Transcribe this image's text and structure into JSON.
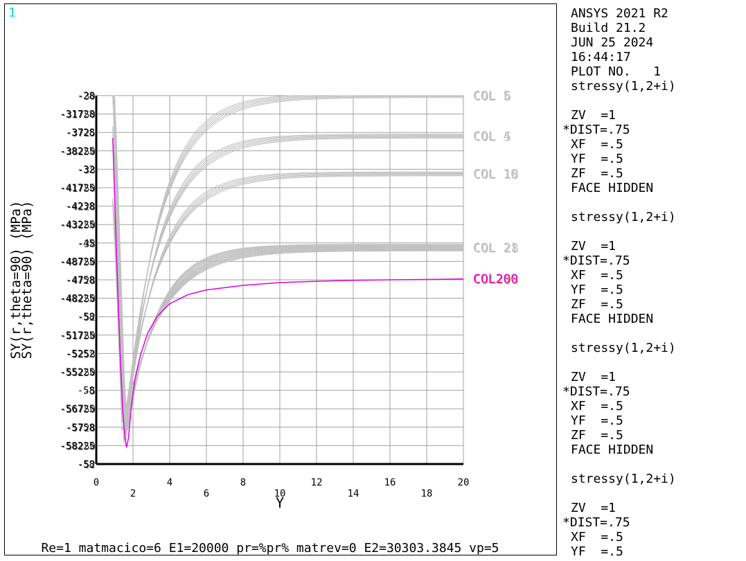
{
  "window_number": "1",
  "footer_text": "Re=1 matmacico=6 E1=20000 pr=%pr% matrev=0 E2=30303.3845 vp=5",
  "info_panel": [
    {
      "text": "ANSYS 2021 R2",
      "indent": true
    },
    {
      "text": "Build 21.2",
      "indent": true
    },
    {
      "text": "JUN 25 2024",
      "indent": true
    },
    {
      "text": "16:44:17",
      "indent": true
    },
    {
      "text": "PLOT NO.   1",
      "indent": true
    },
    {
      "text": "stressy(1,2+i)",
      "indent": true
    },
    {
      "text": "",
      "indent": true
    },
    {
      "text": "ZV  =1",
      "indent": true
    },
    {
      "text": "*DIST=.75",
      "indent": false
    },
    {
      "text": "XF  =.5",
      "indent": true
    },
    {
      "text": "YF  =.5",
      "indent": true
    },
    {
      "text": "ZF  =.5",
      "indent": true
    },
    {
      "text": "FACE HIDDEN",
      "indent": true
    },
    {
      "text": "",
      "indent": true
    },
    {
      "text": "stressy(1,2+i)",
      "indent": true
    },
    {
      "text": "",
      "indent": true
    },
    {
      "text": "ZV  =1",
      "indent": true
    },
    {
      "text": "*DIST=.75",
      "indent": false
    },
    {
      "text": "XF  =.5",
      "indent": true
    },
    {
      "text": "YF  =.5",
      "indent": true
    },
    {
      "text": "ZF  =.5",
      "indent": true
    },
    {
      "text": "FACE HIDDEN",
      "indent": true
    },
    {
      "text": "",
      "indent": true
    },
    {
      "text": "stressy(1,2+i)",
      "indent": true
    },
    {
      "text": "",
      "indent": true
    },
    {
      "text": "ZV  =1",
      "indent": true
    },
    {
      "text": "*DIST=.75",
      "indent": false
    },
    {
      "text": "XF  =.5",
      "indent": true
    },
    {
      "text": "YF  =.5",
      "indent": true
    },
    {
      "text": "ZF  =.5",
      "indent": true
    },
    {
      "text": "FACE HIDDEN",
      "indent": true
    },
    {
      "text": "",
      "indent": true
    },
    {
      "text": "stressy(1,2+i)",
      "indent": true
    },
    {
      "text": "",
      "indent": true
    },
    {
      "text": "ZV  =1",
      "indent": true
    },
    {
      "text": "*DIST=.75",
      "indent": false
    },
    {
      "text": "XF  =.5",
      "indent": true
    },
    {
      "text": "YF  =.5",
      "indent": true
    }
  ],
  "chart_data": {
    "type": "line",
    "xlabel": "Y",
    "ylabels": [
      "SY(r,theta=90) (MPa)",
      "SY(r,theta=90) (MPa)"
    ],
    "xlim": [
      0,
      20
    ],
    "ylim": [
      0,
      20
    ],
    "grid": true,
    "x_ticks": [
      {
        "value": 0,
        "label": "0",
        "row": "upper"
      },
      {
        "value": 2,
        "label": "2",
        "row": "lower"
      },
      {
        "value": 4,
        "label": "4",
        "row": "upper"
      },
      {
        "value": 6,
        "label": "6",
        "row": "lower"
      },
      {
        "value": 8,
        "label": "8",
        "row": "upper"
      },
      {
        "value": 10,
        "label": "10",
        "row": "lower"
      },
      {
        "value": 12,
        "label": "12",
        "row": "upper"
      },
      {
        "value": 14,
        "label": "14",
        "row": "lower"
      },
      {
        "value": 16,
        "label": "16",
        "row": "upper"
      },
      {
        "value": 18,
        "label": "18",
        "row": "lower"
      },
      {
        "value": 20,
        "label": "20",
        "row": "upper"
      }
    ],
    "y_tick_labels": [
      [
        "-28",
        "-30"
      ],
      [
        "-31728",
        "-31750"
      ],
      [
        "-3728",
        "-3725"
      ],
      [
        "-38225",
        "-38250"
      ],
      [
        "-32",
        "-38"
      ],
      [
        "-41725",
        "-41750"
      ],
      [
        "-4238",
        "-4228"
      ],
      [
        "-43225",
        "-43250"
      ],
      [
        "-45",
        "-38"
      ],
      [
        "-48725",
        "-48750"
      ],
      [
        "-4758",
        "-4728"
      ],
      [
        "-48225",
        "-48250"
      ],
      [
        "-58",
        "-52"
      ],
      [
        "-51725",
        "-51750"
      ],
      [
        "-5252",
        "-5258"
      ],
      [
        "-55225",
        "-55250"
      ],
      [
        "-58",
        "-5"
      ],
      [
        "-56725",
        "-56750"
      ],
      [
        "-5758",
        "-5728"
      ],
      [
        "-58225",
        "-58250"
      ],
      [
        "-58",
        "-52"
      ]
    ],
    "series_groups": [
      {
        "color": "#c0c0c0",
        "labels": [
          "COL  5",
          "COL  6"
        ],
        "min_value": 0.9,
        "plateau": 20.0,
        "curves": 6,
        "spread": 0.35
      },
      {
        "color": "#c0c0c0",
        "labels": [
          "COL  4",
          "COL  5"
        ],
        "min_value": 1.4,
        "plateau": 17.8,
        "curves": 6,
        "spread": 0.35
      },
      {
        "color": "#c0c0c0",
        "labels": [
          "COL 10",
          "COL 18"
        ],
        "min_value": 1.7,
        "plateau": 15.75,
        "curves": 6,
        "spread": 0.35
      },
      {
        "color": "#c0c0c0",
        "labels": [
          "COL 21",
          "COL 28"
        ],
        "min_value": 1.5,
        "plateau": 11.75,
        "curves": 14,
        "spread": 0.6
      }
    ],
    "highlight_series": {
      "label": "COL200",
      "label_overlay": "COL208",
      "color": "#e000e0",
      "overlay_color": "#d4a000",
      "points": [
        [
          0.9,
          17.7
        ],
        [
          1.0,
          14.5
        ],
        [
          1.15,
          10.0
        ],
        [
          1.3,
          6.0
        ],
        [
          1.45,
          2.8
        ],
        [
          1.55,
          1.5
        ],
        [
          1.65,
          0.9
        ],
        [
          1.75,
          1.4
        ],
        [
          1.9,
          3.0
        ],
        [
          2.1,
          4.6
        ],
        [
          2.4,
          5.9
        ],
        [
          2.8,
          7.1
        ],
        [
          3.3,
          8.0
        ],
        [
          4.0,
          8.7
        ],
        [
          5.0,
          9.2
        ],
        [
          6.0,
          9.45
        ],
        [
          8.0,
          9.7
        ],
        [
          10.0,
          9.85
        ],
        [
          12.0,
          9.92
        ],
        [
          14.0,
          9.97
        ],
        [
          16.0,
          10.0
        ],
        [
          18.0,
          10.02
        ],
        [
          20.0,
          10.05
        ]
      ]
    }
  }
}
